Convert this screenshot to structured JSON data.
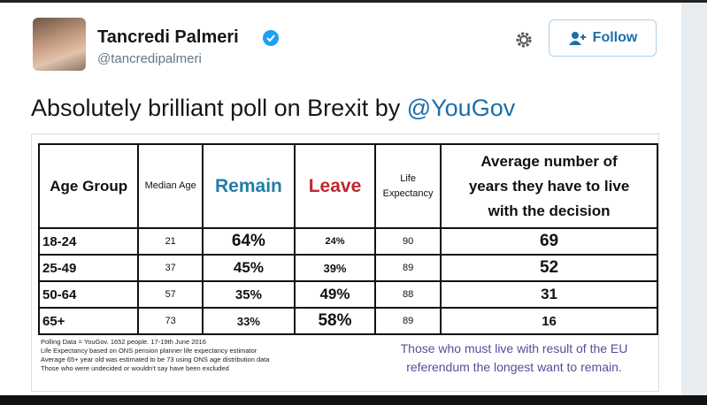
{
  "header": {
    "name": "Tancredi Palmeri",
    "handle": "@tancredipalmeri",
    "follow": "Follow"
  },
  "tweet": {
    "text": "Absolutely brilliant poll on Brexit by ",
    "mention": "@YouGov"
  },
  "table": {
    "headers": [
      "Age Group",
      "Median Age",
      "Remain",
      "Leave",
      "Life Expectancy",
      "Average number of years they have to live with the decision"
    ],
    "rows": [
      [
        "18-24",
        "21",
        "64%",
        "24%",
        "90",
        "69"
      ],
      [
        "25-49",
        "37",
        "45%",
        "39%",
        "89",
        "52"
      ],
      [
        "50-64",
        "57",
        "35%",
        "49%",
        "88",
        "31"
      ],
      [
        "65+",
        "73",
        "33%",
        "58%",
        "89",
        "16"
      ]
    ]
  },
  "notes": [
    "Polling Data = YouGov. 1652 people. 17-19th June 2016",
    "Life Expectancy based on ONS pension planner life expectancy estimator",
    "Average 65+ year old was estimated to be 73 using ONS age distribution data",
    "Those who were undecided or wouldn't say have been excluded"
  ],
  "caption": "Those who must live with result of the EU referendum the longest want to remain."
}
